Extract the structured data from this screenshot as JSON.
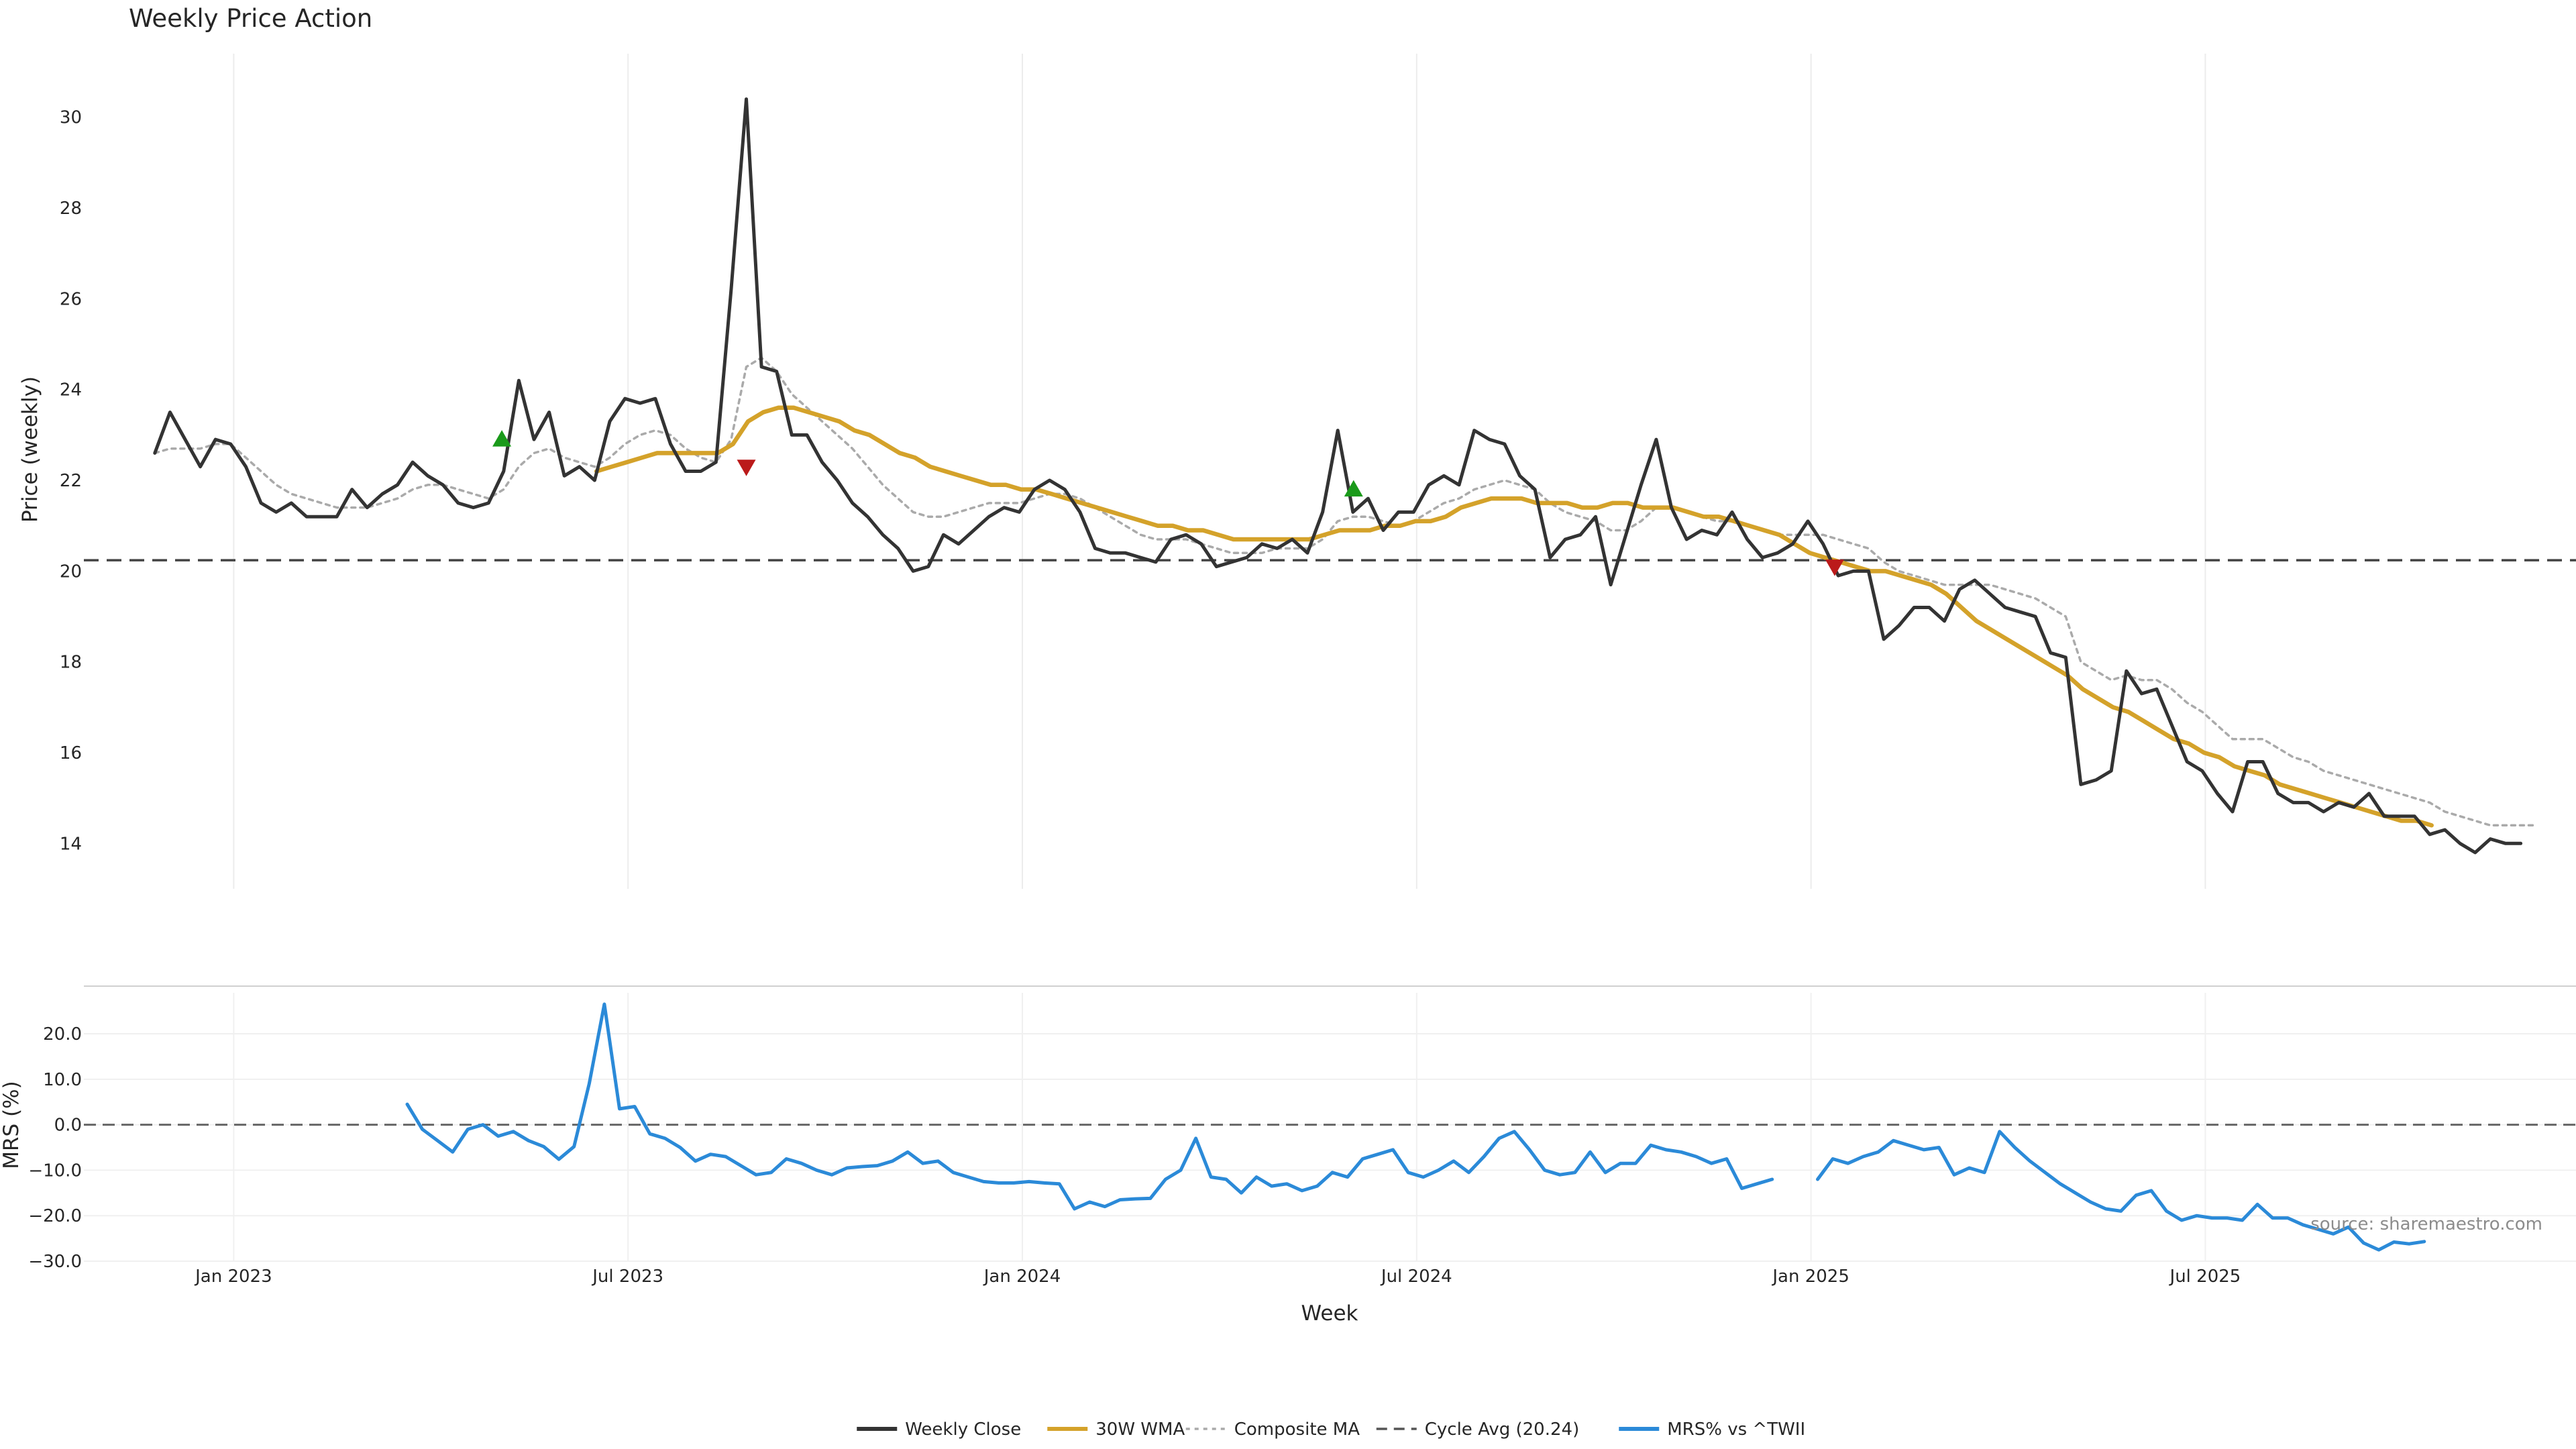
{
  "chart_data": {
    "type": "line",
    "title": "Weekly Price Action",
    "price_panel": {
      "ylabel": "Price (weekly)",
      "ylim": [
        13,
        31.4
      ],
      "yticks": [
        14,
        16,
        18,
        20,
        22,
        24,
        26,
        28,
        30
      ],
      "ytick_labels": [
        "14",
        "16",
        "18",
        "20",
        "22",
        "24",
        "26",
        "28",
        "30"
      ],
      "grid": "vertical",
      "reference_line": {
        "name": "Cycle Avg (20.24)",
        "value": 20.24,
        "color": "#444444"
      },
      "series": [
        {
          "name": "Weekly Close",
          "color": "#333333",
          "x_start": 2022.9,
          "x_step": 0.01923,
          "values": [
            22.6,
            23.5,
            22.9,
            22.3,
            22.9,
            22.8,
            22.3,
            21.5,
            21.3,
            21.5,
            21.2,
            21.2,
            21.2,
            21.8,
            21.4,
            21.7,
            21.9,
            22.4,
            22.1,
            21.9,
            21.5,
            21.4,
            21.5,
            22.2,
            24.2,
            22.9,
            23.5,
            22.1,
            22.3,
            22.0,
            23.3,
            23.8,
            23.7,
            23.8,
            22.8,
            22.2,
            22.2,
            22.4,
            26.2,
            30.4,
            24.5,
            24.4,
            23.0,
            23.0,
            22.4,
            22.0,
            21.5,
            21.2,
            20.8,
            20.5,
            20.0,
            20.1,
            20.8,
            20.6,
            20.9,
            21.2,
            21.4,
            21.3,
            21.8,
            22.0,
            21.8,
            21.3,
            20.5,
            20.4,
            20.4,
            20.3,
            20.2,
            20.7,
            20.8,
            20.6,
            20.1,
            20.2,
            20.3,
            20.6,
            20.5,
            20.7,
            20.4,
            21.3,
            23.1,
            21.3,
            21.6,
            20.9,
            21.3,
            21.3,
            21.9,
            22.1,
            21.9,
            23.1,
            22.9,
            22.8,
            22.1,
            21.8,
            20.3,
            20.7,
            20.8,
            21.2,
            19.7,
            20.8,
            21.9,
            22.9,
            21.4,
            20.7,
            20.9,
            20.8,
            21.3,
            20.7,
            20.3,
            20.4,
            20.6,
            21.1,
            20.6,
            19.9,
            20.0,
            20.0,
            18.5,
            18.8,
            19.2,
            19.2,
            18.9,
            19.6,
            19.8,
            19.5,
            19.2,
            19.1,
            19.0,
            18.2,
            18.1,
            15.3,
            15.4,
            15.6,
            17.8,
            17.3,
            17.4,
            16.6,
            15.8,
            15.6,
            15.1,
            14.7,
            15.8,
            15.8,
            15.1,
            14.9,
            14.9,
            14.7,
            14.9,
            14.8,
            15.1,
            14.6,
            14.6,
            14.6,
            14.2,
            14.3,
            14.0,
            13.8,
            14.1,
            14.0,
            14.0
          ]
        },
        {
          "name": "30W WMA",
          "color": "#d4a22a",
          "x_start": 2023.46,
          "x_step": 0.01923,
          "values": [
            22.2,
            22.3,
            22.4,
            22.5,
            22.6,
            22.6,
            22.6,
            22.6,
            22.6,
            22.8,
            23.3,
            23.5,
            23.6,
            23.6,
            23.5,
            23.4,
            23.3,
            23.1,
            23.0,
            22.8,
            22.6,
            22.5,
            22.3,
            22.2,
            22.1,
            22.0,
            21.9,
            21.9,
            21.8,
            21.8,
            21.7,
            21.6,
            21.5,
            21.4,
            21.3,
            21.2,
            21.1,
            21.0,
            21.0,
            20.9,
            20.9,
            20.8,
            20.7,
            20.7,
            20.7,
            20.7,
            20.7,
            20.7,
            20.8,
            20.9,
            20.9,
            20.9,
            21.0,
            21.0,
            21.1,
            21.1,
            21.2,
            21.4,
            21.5,
            21.6,
            21.6,
            21.6,
            21.5,
            21.5,
            21.5,
            21.4,
            21.4,
            21.5,
            21.5,
            21.4,
            21.4,
            21.4,
            21.3,
            21.2,
            21.2,
            21.1,
            21.0,
            20.9,
            20.8,
            20.6,
            20.4,
            20.3,
            20.2,
            20.1,
            20.0,
            20.0,
            19.9,
            19.8,
            19.7,
            19.5,
            19.2,
            18.9,
            18.7,
            18.5,
            18.3,
            18.1,
            17.9,
            17.7,
            17.4,
            17.2,
            17.0,
            16.9,
            16.7,
            16.5,
            16.3,
            16.2,
            16.0,
            15.9,
            15.7,
            15.6,
            15.5,
            15.3,
            15.2,
            15.1,
            15.0,
            14.9,
            14.8,
            14.7,
            14.6,
            14.5,
            14.5,
            14.4
          ]
        },
        {
          "name": "Composite MA",
          "color": "#aaaaaa",
          "x_start": 2022.9,
          "x_step": 0.01923,
          "values": [
            22.6,
            22.7,
            22.7,
            22.7,
            22.8,
            22.8,
            22.5,
            22.2,
            21.9,
            21.7,
            21.6,
            21.5,
            21.4,
            21.4,
            21.4,
            21.5,
            21.6,
            21.8,
            21.9,
            21.9,
            21.8,
            21.7,
            21.6,
            21.8,
            22.3,
            22.6,
            22.7,
            22.5,
            22.4,
            22.3,
            22.5,
            22.8,
            23.0,
            23.1,
            23.0,
            22.7,
            22.5,
            22.4,
            22.9,
            24.5,
            24.7,
            24.4,
            23.9,
            23.6,
            23.3,
            23.0,
            22.7,
            22.3,
            21.9,
            21.6,
            21.3,
            21.2,
            21.2,
            21.3,
            21.4,
            21.5,
            21.5,
            21.5,
            21.6,
            21.7,
            21.7,
            21.6,
            21.4,
            21.2,
            21.0,
            20.8,
            20.7,
            20.7,
            20.7,
            20.6,
            20.5,
            20.4,
            20.4,
            20.4,
            20.5,
            20.5,
            20.5,
            20.7,
            21.1,
            21.2,
            21.2,
            21.1,
            21.0,
            21.1,
            21.3,
            21.5,
            21.6,
            21.8,
            21.9,
            22.0,
            21.9,
            21.8,
            21.5,
            21.3,
            21.2,
            21.1,
            20.9,
            20.9,
            21.1,
            21.4,
            21.4,
            21.3,
            21.2,
            21.1,
            21.1,
            21.0,
            20.9,
            20.8,
            20.8,
            20.8,
            20.8,
            20.7,
            20.6,
            20.5,
            20.2,
            20.0,
            19.9,
            19.8,
            19.7,
            19.7,
            19.7,
            19.7,
            19.6,
            19.5,
            19.4,
            19.2,
            19.0,
            18.0,
            17.8,
            17.6,
            17.7,
            17.6,
            17.6,
            17.4,
            17.1,
            16.9,
            16.6,
            16.3,
            16.3,
            16.3,
            16.1,
            15.9,
            15.8,
            15.6,
            15.5,
            15.4,
            15.3,
            15.2,
            15.1,
            15.0,
            14.9,
            14.7,
            14.6,
            14.5,
            14.4,
            14.4,
            14.4,
            14.4
          ]
        }
      ],
      "markers": [
        {
          "kind": "buy",
          "x": 2023.34,
          "y": 22.9,
          "color": "#1a9a1a"
        },
        {
          "kind": "sell",
          "x": 2023.65,
          "y": 22.3,
          "color": "#bb1a1a"
        },
        {
          "kind": "buy",
          "x": 2024.42,
          "y": 21.8,
          "color": "#1a9a1a"
        },
        {
          "kind": "sell",
          "x": 2025.03,
          "y": 20.1,
          "color": "#bb1a1a"
        }
      ]
    },
    "mrs_panel": {
      "ylabel": "MRS (%)",
      "ylim": [
        -30,
        29
      ],
      "yticks": [
        -30,
        -20,
        -10,
        0,
        10,
        20
      ],
      "ytick_labels": [
        "−30.0",
        "−20.0",
        "−10.0",
        "0.0",
        "10.0",
        "20.0"
      ],
      "zero_line": 0,
      "series": [
        {
          "name": "MRS% vs ^TWII",
          "color": "#2b8ad8",
          "x_start": 2023.22,
          "x_step": 0.01923,
          "values": [
            4.5,
            -1,
            -3.5,
            -6,
            -1,
            0,
            -2.5,
            -1.5,
            -3.5,
            -4.8,
            -7.6,
            -4.8,
            9,
            26.5,
            3.5,
            4,
            -2,
            -3,
            -5,
            -8,
            -6.5,
            -7,
            -9,
            -11,
            -10.5,
            -7.5,
            -8.5,
            -10,
            -11,
            -9.5,
            -9.2,
            -9,
            -8,
            -6,
            -8.5,
            -8,
            -10.5,
            -11.5,
            -12.5,
            -12.8,
            -12.8,
            -12.5,
            -12.8,
            -13,
            -18.5,
            -17,
            -18,
            -16.5,
            -16.3,
            -16.2,
            -12,
            -10,
            -3,
            -11.5,
            -12,
            -15,
            -11.5,
            -13.5,
            -13,
            -14.5,
            -13.5,
            -10.5,
            -11.5,
            -7.5,
            -6.5,
            -5.5,
            -10.5,
            -11.5,
            -10,
            -8,
            -10.5,
            -7,
            -3,
            -1.5,
            -5.5,
            -10,
            -11,
            -10.5,
            -6,
            -10.5,
            -8.5,
            -8.5,
            -4.5,
            -5.5,
            -6,
            -7,
            -8.5,
            -7.5,
            -14,
            -13,
            -12,
            null,
            null,
            -12,
            -7.5,
            -8.5,
            -7,
            -6,
            -3.5,
            -4.5,
            -5.5,
            -5,
            -11,
            -9.5,
            -10.5,
            -1.5,
            -5,
            -8,
            -10.5,
            -13,
            -15,
            -17,
            -18.5,
            -19,
            -15.5,
            -14.5,
            -19,
            -21,
            -20,
            -20.5,
            -20.5,
            -21,
            -17.5,
            -20.5,
            -20.5,
            -22,
            -23,
            -24,
            -22.5,
            -26,
            -27.5,
            -25.8,
            -26.2,
            -25.7
          ]
        }
      ]
    },
    "x_axis": {
      "xlabel": "Week",
      "xlim": [
        2022.81,
        2025.97
      ],
      "ticks": [
        2023.0,
        2023.5,
        2024.0,
        2024.5,
        2025.0,
        2025.5
      ],
      "tick_labels": [
        "Jan 2023",
        "Jul 2023",
        "Jan 2024",
        "Jul 2024",
        "Jan 2025",
        "Jul 2025"
      ]
    },
    "legend": {
      "position": "bottom-center",
      "entries": [
        {
          "label": "Weekly Close",
          "style": "solid",
          "color": "#333333"
        },
        {
          "label": "30W WMA",
          "style": "solid",
          "color": "#d4a22a"
        },
        {
          "label": "Composite MA",
          "style": "dotted",
          "color": "#aaaaaa"
        },
        {
          "label": "Cycle Avg (20.24)",
          "style": "dashed",
          "color": "#555555"
        },
        {
          "label": "MRS% vs ^TWII",
          "style": "solid",
          "color": "#2b8ad8"
        }
      ]
    },
    "source_text": "source: sharemaestro.com"
  }
}
